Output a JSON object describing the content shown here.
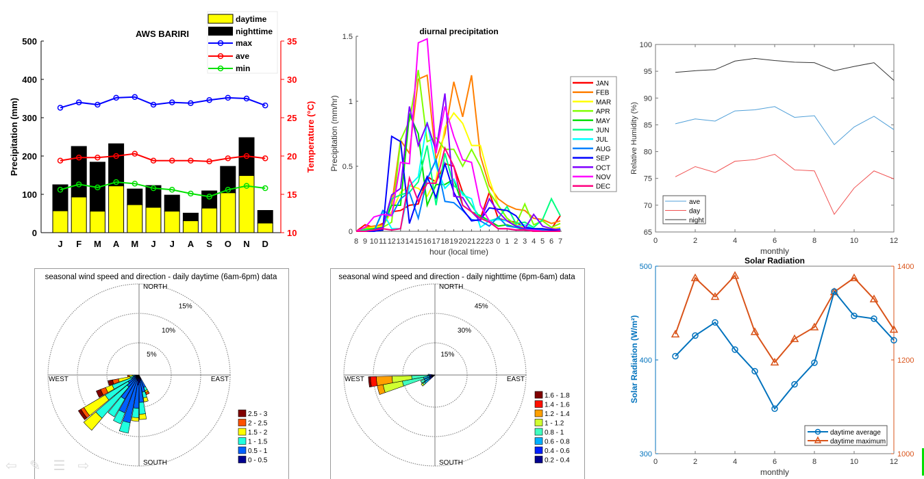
{
  "colors": {
    "daytime": "#ffff00",
    "nighttime": "#000000",
    "max": "#0000ff",
    "ave": "#ff0000",
    "min": "#00e000",
    "rh_ave": "#4f9fd8",
    "rh_day": "#f05050",
    "rh_night": "#333333",
    "solar_avg": "#0072bd",
    "solar_max": "#d95319"
  },
  "nav_icons": [
    "arrow-left-icon",
    "pen-icon",
    "menu-icon",
    "arrow-right-icon"
  ],
  "chart_data": [
    {
      "type": "bar",
      "title": "AWS BARIRI",
      "categories": [
        "J",
        "F",
        "M",
        "A",
        "M",
        "J",
        "J",
        "A",
        "S",
        "O",
        "N",
        "D"
      ],
      "ylabel": "Precipitation (mm)",
      "ylim": [
        0,
        500
      ],
      "yticks": [
        0,
        100,
        200,
        300,
        400,
        500
      ],
      "y2label": "Temperature (°C)",
      "y2lim": [
        10,
        35
      ],
      "y2ticks": [
        10,
        15,
        20,
        25,
        30,
        35
      ],
      "stacked": true,
      "series": [
        {
          "name": "daytime",
          "kind": "bar",
          "values": [
            57,
            93,
            56,
            122,
            73,
            66,
            56,
            31,
            64,
            104,
            149,
            25
          ]
        },
        {
          "name": "nighttime",
          "kind": "bar",
          "values": [
            68,
            132,
            128,
            110,
            41,
            57,
            42,
            20,
            45,
            69,
            99,
            33
          ]
        },
        {
          "name": "max",
          "kind": "line",
          "axis": "right",
          "values": [
            26.3,
            27.0,
            26.7,
            27.6,
            27.7,
            26.7,
            27.0,
            26.9,
            27.3,
            27.6,
            27.5,
            26.6
          ]
        },
        {
          "name": "ave",
          "kind": "line",
          "axis": "right",
          "values": [
            19.4,
            19.8,
            19.8,
            20.0,
            20.3,
            19.4,
            19.4,
            19.4,
            19.3,
            19.7,
            20.0,
            19.7
          ]
        },
        {
          "name": "min",
          "kind": "line",
          "axis": "right",
          "values": [
            15.6,
            16.3,
            15.9,
            16.6,
            16.4,
            15.8,
            15.6,
            15.1,
            14.7,
            15.6,
            16.1,
            15.8
          ]
        }
      ],
      "legend": "top-right"
    },
    {
      "type": "line",
      "title": "diurnal precipitation",
      "xlabel": "hour (local time)",
      "ylabel": "Precipitation (mm/hr)",
      "x": [
        "8",
        "9",
        "10",
        "11",
        "12",
        "13",
        "14",
        "15",
        "16",
        "17",
        "18",
        "19",
        "20",
        "21",
        "22",
        "23",
        "0",
        "1",
        "2",
        "3",
        "4",
        "5",
        "6",
        "7"
      ],
      "ylim": [
        0,
        1.5
      ],
      "yticks": [
        "0",
        "0.5",
        "1",
        "1.5"
      ],
      "legend": "right",
      "series": [
        {
          "name": "JAN",
          "color": "#ff0000",
          "values": [
            0,
            0.05,
            0.03,
            0.06,
            0.15,
            0.16,
            0.2,
            0.21,
            0.42,
            0.38,
            0.52,
            0.5,
            0.3,
            0.2,
            0.1,
            0.3,
            0.1,
            0.08,
            0.07,
            0.03,
            0.02,
            0.01,
            0.02,
            0.12
          ]
        },
        {
          "name": "FEB",
          "color": "#ff7f00",
          "values": [
            0,
            0.03,
            0.04,
            0.05,
            0.2,
            0.7,
            0.6,
            1.17,
            1.2,
            0.55,
            0.75,
            1.15,
            0.88,
            1.2,
            0.58,
            0.35,
            0.25,
            0.2,
            0.17,
            0.16,
            0.1,
            0.09,
            0.06,
            0.08
          ]
        },
        {
          "name": "MAR",
          "color": "#ffff00",
          "values": [
            0,
            0.02,
            0.03,
            0.04,
            0.15,
            0.3,
            0.35,
            0.33,
            0.27,
            0.4,
            0.8,
            0.91,
            0.83,
            0.66,
            0.66,
            0.4,
            0.2,
            0.1,
            0.05,
            0.03,
            0.02,
            0.02,
            0.02,
            0.03
          ]
        },
        {
          "name": "APR",
          "color": "#80ff00",
          "values": [
            0,
            0.02,
            0.02,
            0.03,
            0.07,
            0.7,
            0.85,
            1.24,
            0.69,
            0.72,
            0.63,
            0.63,
            0.5,
            0.63,
            0.5,
            0.3,
            0.2,
            0.1,
            0.05,
            0.21,
            0.05,
            0.08,
            0.03,
            0.06
          ]
        },
        {
          "name": "MAY",
          "color": "#00e000",
          "values": [
            0,
            0.01,
            0.02,
            0.03,
            0.2,
            0.2,
            0.9,
            0.75,
            0.2,
            0.36,
            0.36,
            0.4,
            0.2,
            0.15,
            0.12,
            0.08,
            0.04,
            0.05,
            0.03,
            0.01,
            0,
            0.01,
            0.01,
            0.02
          ]
        },
        {
          "name": "JUN",
          "color": "#00ff80",
          "values": [
            0,
            0.01,
            0.01,
            0.02,
            0.25,
            0.28,
            0.3,
            0.38,
            0.66,
            0.2,
            0.6,
            0.35,
            0.3,
            0.2,
            0.1,
            0.08,
            0.1,
            0.19,
            0.06,
            0.07,
            0.03,
            0.09,
            0.25,
            0.12
          ]
        },
        {
          "name": "JUL",
          "color": "#00ffff",
          "values": [
            0,
            0,
            0,
            0.15,
            0.02,
            0.02,
            0.35,
            0.42,
            0.84,
            0.5,
            0.33,
            0.4,
            0.28,
            0.25,
            0.03,
            0.08,
            0.09,
            0.08,
            0.04,
            0.05,
            0.02,
            0.02,
            0.01,
            0.02
          ]
        },
        {
          "name": "AUG",
          "color": "#0080ff",
          "values": [
            0,
            0,
            0,
            0.16,
            0.12,
            0.25,
            0.3,
            0.1,
            0.4,
            0.55,
            0.23,
            0.22,
            0.16,
            0.09,
            0.08,
            0.04,
            0.11,
            0.04,
            0.03,
            0.02,
            0.01,
            0.01,
            0.01,
            0.02
          ]
        },
        {
          "name": "SEP",
          "color": "#0000ff",
          "values": [
            0,
            0,
            0,
            0.01,
            0.73,
            0.69,
            0.06,
            0.27,
            0.42,
            0.26,
            0.52,
            0.3,
            0.17,
            0.08,
            0.09,
            0.18,
            0.17,
            0.16,
            0.12,
            0.03,
            0.02,
            0.02,
            0.01,
            0.01
          ]
        },
        {
          "name": "OCT",
          "color": "#8000ff",
          "values": [
            0,
            0,
            0.01,
            0.03,
            0.28,
            0.33,
            0.96,
            0.66,
            0.83,
            0.62,
            1.06,
            0.27,
            0.26,
            0.15,
            0.08,
            0.25,
            0.15,
            0.08,
            0.04,
            0.02,
            0.13,
            0.04,
            0.02,
            0.01
          ]
        },
        {
          "name": "NOV",
          "color": "#ff00ff",
          "values": [
            0,
            0.03,
            0.11,
            0.13,
            0.12,
            0.53,
            0.52,
            1.45,
            1.48,
            0.6,
            0.96,
            0.73,
            0.55,
            0.53,
            0.2,
            0.08,
            0.02,
            0.02,
            0.01,
            0.01,
            0.01,
            0,
            0,
            0
          ]
        },
        {
          "name": "DEC",
          "color": "#ff0080",
          "values": [
            0,
            0,
            0.01,
            0.02,
            0.01,
            0.02,
            0.41,
            0.23,
            0.37,
            0.37,
            0.64,
            0.5,
            0.2,
            0.15,
            0.1,
            0.07,
            0.02,
            0.02,
            0.01,
            0.01,
            0,
            0,
            0,
            0
          ]
        }
      ]
    },
    {
      "type": "line",
      "xlabel": "monthly",
      "ylabel": "Relative Humidity (%)",
      "xlim": [
        0,
        12
      ],
      "xticks": [
        0,
        2,
        4,
        6,
        8,
        10,
        12
      ],
      "ylim": [
        65,
        100
      ],
      "yticks": [
        65,
        70,
        75,
        80,
        85,
        90,
        95,
        100
      ],
      "x": [
        1,
        2,
        3,
        4,
        5,
        6,
        7,
        8,
        9,
        10,
        11,
        12
      ],
      "legend": "bottom-left",
      "series": [
        {
          "name": "ave",
          "values": [
            85.2,
            86.1,
            85.7,
            87.6,
            87.8,
            88.4,
            86.4,
            86.7,
            81.3,
            84.6,
            86.6,
            84.1
          ]
        },
        {
          "name": "day",
          "values": [
            75.3,
            77.2,
            76.1,
            78.2,
            78.5,
            79.5,
            76.6,
            76.4,
            68.3,
            73.2,
            76.4,
            74.9
          ]
        },
        {
          "name": "night",
          "values": [
            94.8,
            95.1,
            95.3,
            96.9,
            97.4,
            97.0,
            96.7,
            96.6,
            95.1,
            95.9,
            96.6,
            93.3
          ]
        }
      ]
    },
    {
      "type": "line",
      "title": "Solar Radiation",
      "xlabel": "monthly",
      "ylabel": "Solar Radiation (W/m²)",
      "xlim": [
        0,
        12
      ],
      "xticks": [
        0,
        2,
        4,
        6,
        8,
        10,
        12
      ],
      "ylim": [
        300,
        500
      ],
      "yticks": [
        300,
        400,
        500
      ],
      "y2lim": [
        1000,
        1400
      ],
      "y2ticks": [
        1000,
        1200,
        1400
      ],
      "x": [
        1,
        2,
        3,
        4,
        5,
        6,
        7,
        8,
        9,
        10,
        11,
        12
      ],
      "legend": "bottom-right",
      "series": [
        {
          "name": "daytime average",
          "axis": "left",
          "marker": "circle",
          "values": [
            404,
            426,
            440,
            411,
            388,
            348,
            374,
            397,
            473,
            447,
            444,
            421
          ]
        },
        {
          "name": "daytime maximum",
          "axis": "right",
          "marker": "triangle",
          "values": [
            1255,
            1375,
            1335,
            1380,
            1260,
            1195,
            1245,
            1270,
            1345,
            1375,
            1330,
            1265
          ]
        }
      ]
    },
    {
      "type": "wind-rose",
      "title": "seasonal wind speed and direction - daily daytime (6am-6pm) data",
      "directions": [
        "NORTH",
        "EAST",
        "SOUTH",
        "WEST"
      ],
      "rings": [
        "5%",
        "10%",
        "15%"
      ],
      "ring_values": [
        5,
        10,
        15
      ],
      "bins": [
        "0 - 0.5",
        "0.5 - 1",
        "1 - 1.5",
        "1.5 - 2",
        "2 - 2.5",
        "2.5 - 3"
      ],
      "bin_colors": [
        "#00008f",
        "#0060ff",
        "#20ffdf",
        "#ffff00",
        "#ff5000",
        "#800000"
      ],
      "sectors": [
        {
          "bearing": 155,
          "values": [
            0.3,
            1.5,
            0.6,
            0.3,
            0.4,
            0
          ]
        },
        {
          "bearing": 165,
          "values": [
            0.5,
            2.0,
            1.0,
            0.7,
            0,
            0
          ]
        },
        {
          "bearing": 175,
          "values": [
            0.8,
            3.4,
            2.0,
            0.9,
            0,
            0
          ]
        },
        {
          "bearing": 185,
          "values": [
            1.2,
            4.0,
            1.6,
            0.6,
            0,
            0
          ]
        },
        {
          "bearing": 195,
          "values": [
            0.6,
            7.2,
            1.8,
            0,
            0,
            0
          ]
        },
        {
          "bearing": 205,
          "values": [
            0.4,
            6.0,
            2.0,
            0,
            0,
            0
          ]
        },
        {
          "bearing": 215,
          "values": [
            0.3,
            4.0,
            3.5,
            0,
            0,
            0
          ]
        },
        {
          "bearing": 225,
          "values": [
            0.2,
            2.0,
            7.0,
            2.7,
            0,
            0
          ]
        },
        {
          "bearing": 235,
          "values": [
            0.2,
            1.5,
            4.5,
            4.2,
            0.6,
            0.5
          ]
        },
        {
          "bearing": 245,
          "values": [
            0.1,
            0.8,
            3.5,
            1.2,
            0.9,
            0.8
          ]
        },
        {
          "bearing": 255,
          "values": [
            0.1,
            0.4,
            0.6,
            2.0,
            1.0,
            0.8
          ]
        },
        {
          "bearing": 265,
          "values": [
            0.1,
            0.2,
            0.3,
            0.6,
            0.3,
            0
          ]
        }
      ],
      "legend": "bottom-right"
    },
    {
      "type": "wind-rose",
      "title": "seasonal wind speed and direction - daily nighttime (6pm-6am) data",
      "directions": [
        "NORTH",
        "EAST",
        "SOUTH",
        "WEST"
      ],
      "rings": [
        "15%",
        "30%",
        "45%"
      ],
      "ring_values": [
        15,
        30,
        45
      ],
      "bins": [
        "0.2 - 0.4",
        "0.4 - 0.6",
        "0.6 - 0.8",
        "0.8 - 1",
        "1 - 1.2",
        "1.2 - 1.4",
        "1.4 - 1.6",
        "1.6 - 1.8"
      ],
      "bin_colors": [
        "#00008f",
        "#0020ff",
        "#00b0ff",
        "#40ffbf",
        "#d0ff30",
        "#ffa000",
        "#ff1000",
        "#800000"
      ],
      "sectors": [
        {
          "bearing": 232,
          "values": [
            0.5,
            1.5,
            3,
            1,
            1,
            0,
            0,
            0
          ]
        },
        {
          "bearing": 243,
          "values": [
            0.5,
            1,
            3,
            2,
            0,
            0,
            0,
            0
          ]
        },
        {
          "bearing": 255,
          "values": [
            0.5,
            1,
            3,
            11,
            10,
            3,
            0,
            0
          ]
        },
        {
          "bearing": 264,
          "values": [
            0.5,
            1,
            1,
            8,
            10,
            8,
            3,
            1
          ]
        },
        {
          "bearing": 272,
          "values": [
            0.5,
            0.8,
            0.5,
            0.3,
            0,
            0,
            0,
            0
          ]
        }
      ],
      "legend": "bottom-right"
    }
  ]
}
